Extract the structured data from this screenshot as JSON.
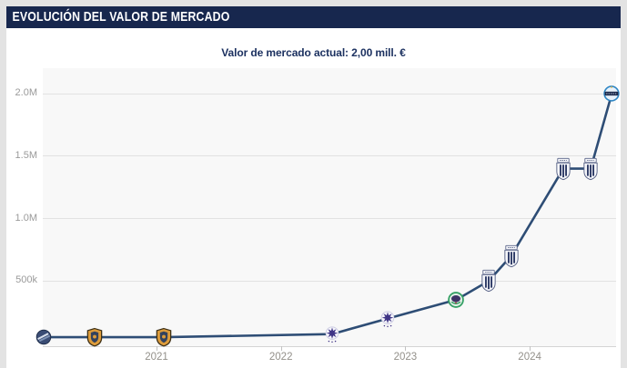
{
  "page": {
    "background_color": "#e3e3e3",
    "card_background_color": "#ffffff"
  },
  "header": {
    "title": "EVOLUCIÓN DEL VALOR DE MERCADO",
    "background_color": "#17274e",
    "text_color": "#ffffff"
  },
  "subtitle": {
    "text": "Valor de mercado actual: 2,00 mill. €",
    "color": "#1c3160"
  },
  "chart_data": {
    "type": "line",
    "title": "Evolución del valor de mercado",
    "current_value_eur": 2000000,
    "current_value_label": "2,00 mill. €",
    "xlabel": "",
    "ylabel": "",
    "x_ticks": [
      "2021",
      "2022",
      "2023",
      "2024"
    ],
    "y_ticks": [
      {
        "label": "500k",
        "value": 500000
      },
      {
        "label": "1.0M",
        "value": 1000000
      },
      {
        "label": "1.5M",
        "value": 1500000
      },
      {
        "label": "2.0M",
        "value": 2000000
      }
    ],
    "ylim": [
      0,
      2200000
    ],
    "xlim_years": [
      2020.0,
      2024.75
    ],
    "grid": true,
    "legend": false,
    "line_color": "#2e4d75",
    "plot_background": "#f8f8f8",
    "gridline_color": "#e2e2e2",
    "axis_text_color": "#9a9a9a",
    "points": [
      {
        "approx_date": "Feb 2020",
        "year": 2020.09,
        "value": 50000,
        "value_label": "50k",
        "club_icon": "circle-navy-crest"
      },
      {
        "approx_date": "Jul 2020",
        "year": 2020.5,
        "value": 50000,
        "value_label": "50k",
        "club_icon": "shield-orange-crest"
      },
      {
        "approx_date": "Ene 2021",
        "year": 2021.06,
        "value": 50000,
        "value_label": "50k",
        "club_icon": "shield-orange-crest"
      },
      {
        "approx_date": "Jun 2022",
        "year": 2022.41,
        "value": 75000,
        "value_label": "75k",
        "club_icon": "star-purple-crest"
      },
      {
        "approx_date": "Nov 2022",
        "year": 2022.86,
        "value": 200000,
        "value_label": "200k",
        "club_icon": "star-purple-crest"
      },
      {
        "approx_date": "Jun 2023",
        "year": 2023.41,
        "value": 350000,
        "value_label": "350k",
        "club_icon": "circle-green-crest"
      },
      {
        "approx_date": "Sep 2023",
        "year": 2023.67,
        "value": 500000,
        "value_label": "500k",
        "club_icon": "navy-striped-shield-crest"
      },
      {
        "approx_date": "Nov 2023",
        "year": 2023.85,
        "value": 700000,
        "value_label": "700k",
        "club_icon": "navy-striped-shield-crest"
      },
      {
        "approx_date": "Mar 2024",
        "year": 2024.27,
        "value": 1400000,
        "value_label": "1.4M",
        "club_icon": "navy-striped-shield-crest"
      },
      {
        "approx_date": "Jun 2024",
        "year": 2024.49,
        "value": 1400000,
        "value_label": "1.4M",
        "club_icon": "navy-striped-shield-crest"
      },
      {
        "approx_date": "Sep 2024",
        "year": 2024.66,
        "value": 2000000,
        "value_label": "2.0M",
        "club_icon": "circle-blue-crest"
      }
    ]
  }
}
